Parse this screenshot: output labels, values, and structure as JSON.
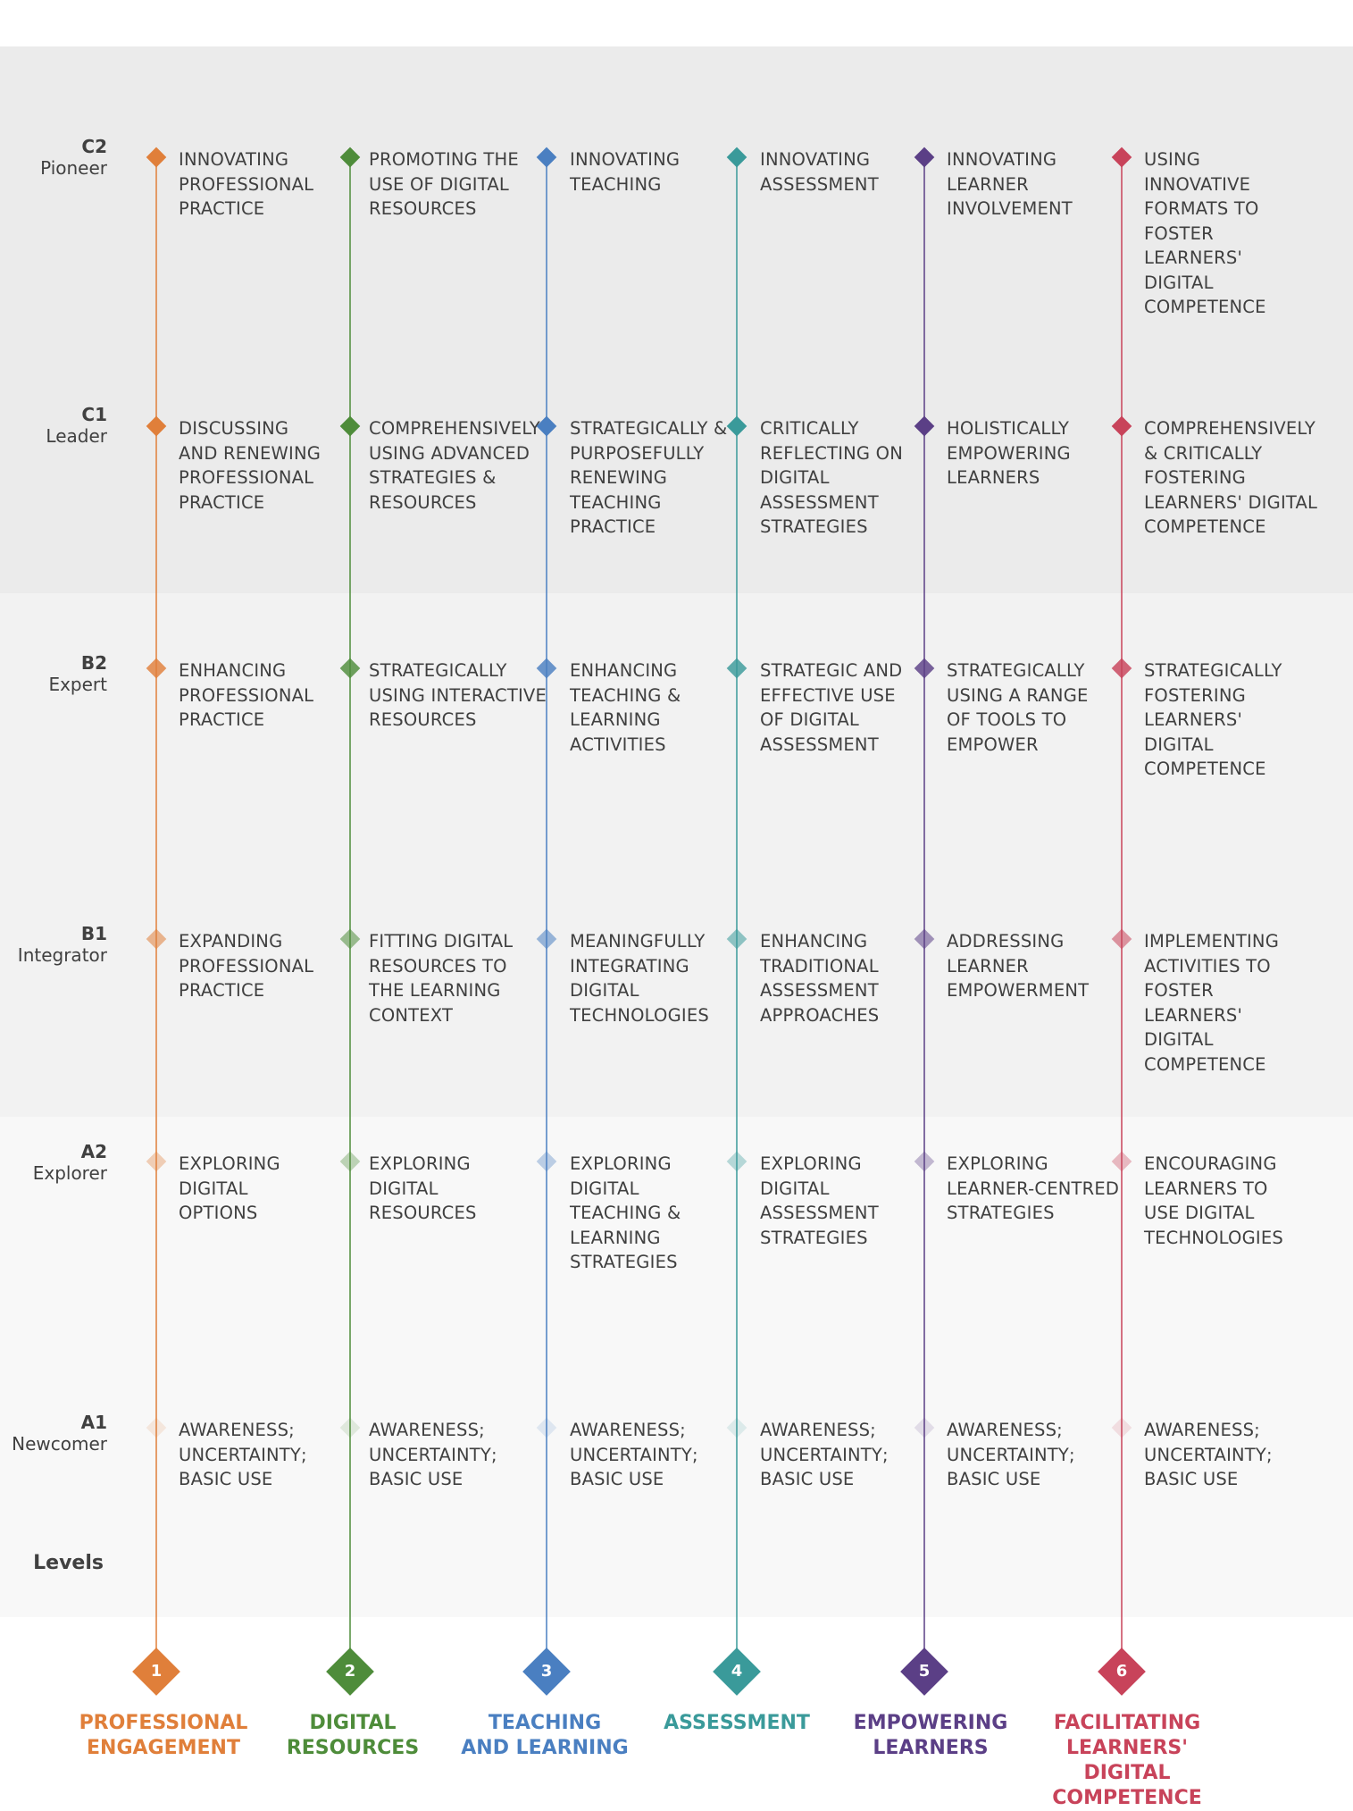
{
  "levels_title": "Levels",
  "levels": [
    {
      "code": "C2",
      "name": "Pioneer"
    },
    {
      "code": "C1",
      "name": "Leader"
    },
    {
      "code": "B2",
      "name": "Expert"
    },
    {
      "code": "B1",
      "name": "Integrator"
    },
    {
      "code": "A2",
      "name": "Explorer"
    },
    {
      "code": "A1",
      "name": "Newcomer"
    }
  ],
  "areas": [
    {
      "number": "1",
      "label_line1": "PROFESSIONAL",
      "label_line2": "ENGAGEMENT",
      "label_line3": "",
      "color": "#e07f3a",
      "cells": [
        [
          "INNOVATING",
          "PROFESSIONAL",
          "PRACTICE"
        ],
        [
          "DISCUSSING",
          "AND RENEWING",
          "PROFESSIONAL",
          "PRACTICE"
        ],
        [
          "ENHANCING",
          "PROFESSIONAL",
          "PRACTICE"
        ],
        [
          "EXPANDING",
          "PROFESSIONAL",
          "PRACTICE"
        ],
        [
          "EXPLORING",
          "DIGITAL",
          "OPTIONS"
        ],
        [
          "AWARENESS;",
          "UNCERTAINTY;",
          "BASIC USE"
        ]
      ]
    },
    {
      "number": "2",
      "label_line1": "DIGITAL",
      "label_line2": "RESOURCES",
      "label_line3": "",
      "color": "#4e8c3a",
      "cells": [
        [
          "PROMOTING THE",
          "USE OF DIGITAL",
          "RESOURCES"
        ],
        [
          "COMPREHENSIVELY",
          "USING ADVANCED",
          "STRATEGIES &",
          "RESOURCES"
        ],
        [
          "STRATEGICALLY",
          "USING INTERACTIVE",
          "RESOURCES"
        ],
        [
          "FITTING DIGITAL",
          "RESOURCES TO",
          "THE LEARNING",
          "CONTEXT"
        ],
        [
          "EXPLORING",
          "DIGITAL",
          "RESOURCES"
        ],
        [
          "AWARENESS;",
          "UNCERTAINTY;",
          "BASIC USE"
        ]
      ]
    },
    {
      "number": "3",
      "label_line1": "TEACHING",
      "label_line2": "AND LEARNING",
      "label_line3": "",
      "color": "#4a7fc1",
      "cells": [
        [
          "INNOVATING",
          "TEACHING"
        ],
        [
          "STRATEGICALLY &",
          "PURPOSEFULLY",
          "RENEWING",
          "TEACHING",
          "PRACTICE"
        ],
        [
          "ENHANCING",
          "TEACHING &",
          "LEARNING",
          "ACTIVITIES"
        ],
        [
          "MEANINGFULLY",
          "INTEGRATING",
          "DIGITAL",
          "TECHNOLOGIES"
        ],
        [
          "EXPLORING",
          "DIGITAL",
          "TEACHING &",
          "LEARNING",
          "STRATEGIES"
        ],
        [
          "AWARENESS;",
          "UNCERTAINTY;",
          "BASIC USE"
        ]
      ]
    },
    {
      "number": "4",
      "label_line1": "ASSESSMENT",
      "label_line2": "",
      "label_line3": "",
      "color": "#3a9a9a",
      "cells": [
        [
          "INNOVATING",
          "ASSESSMENT"
        ],
        [
          "CRITICALLY",
          "REFLECTING ON",
          "DIGITAL",
          "ASSESSMENT",
          "STRATEGIES"
        ],
        [
          "STRATEGIC AND",
          "EFFECTIVE USE",
          "OF DIGITAL",
          "ASSESSMENT"
        ],
        [
          "ENHANCING",
          "TRADITIONAL",
          "ASSESSMENT",
          "APPROACHES"
        ],
        [
          "EXPLORING",
          "DIGITAL",
          "ASSESSMENT",
          "STRATEGIES"
        ],
        [
          "AWARENESS;",
          "UNCERTAINTY;",
          "BASIC USE"
        ]
      ]
    },
    {
      "number": "5",
      "label_line1": "EMPOWERING",
      "label_line2": "LEARNERS",
      "label_line3": "",
      "color": "#5b3f86",
      "cells": [
        [
          "INNOVATING",
          "LEARNER",
          "INVOLVEMENT"
        ],
        [
          "HOLISTICALLY",
          "EMPOWERING",
          "LEARNERS"
        ],
        [
          "STRATEGICALLY",
          "USING A RANGE",
          "OF TOOLS TO",
          "EMPOWER"
        ],
        [
          "ADDRESSING",
          "LEARNER",
          "EMPOWERMENT"
        ],
        [
          "EXPLORING",
          "LEARNER-CENTRED",
          "STRATEGIES"
        ],
        [
          "AWARENESS;",
          "UNCERTAINTY;",
          "BASIC USE"
        ]
      ]
    },
    {
      "number": "6",
      "label_line1": "FACILITATING",
      "label_line2": "LEARNERS' DIGITAL",
      "label_line3": "COMPETENCE",
      "color": "#c8435a",
      "cells": [
        [
          "USING",
          "INNOVATIVE",
          "FORMATS TO",
          "FOSTER",
          "LEARNERS'",
          "DIGITAL",
          "COMPETENCE"
        ],
        [
          "COMPREHENSIVELY",
          "& CRITICALLY",
          "FOSTERING",
          "LEARNERS' DIGITAL",
          "COMPETENCE"
        ],
        [
          "STRATEGICALLY",
          "FOSTERING",
          "LEARNERS'",
          "DIGITAL",
          "COMPETENCE"
        ],
        [
          "IMPLEMENTING",
          "ACTIVITIES TO",
          "FOSTER",
          "LEARNERS'",
          "DIGITAL",
          "COMPETENCE"
        ],
        [
          "ENCOURAGING",
          "LEARNERS TO",
          "USE DIGITAL",
          "TECHNOLOGIES"
        ],
        [
          "AWARENESS;",
          "UNCERTAINTY;",
          "BASIC USE"
        ]
      ]
    }
  ]
}
